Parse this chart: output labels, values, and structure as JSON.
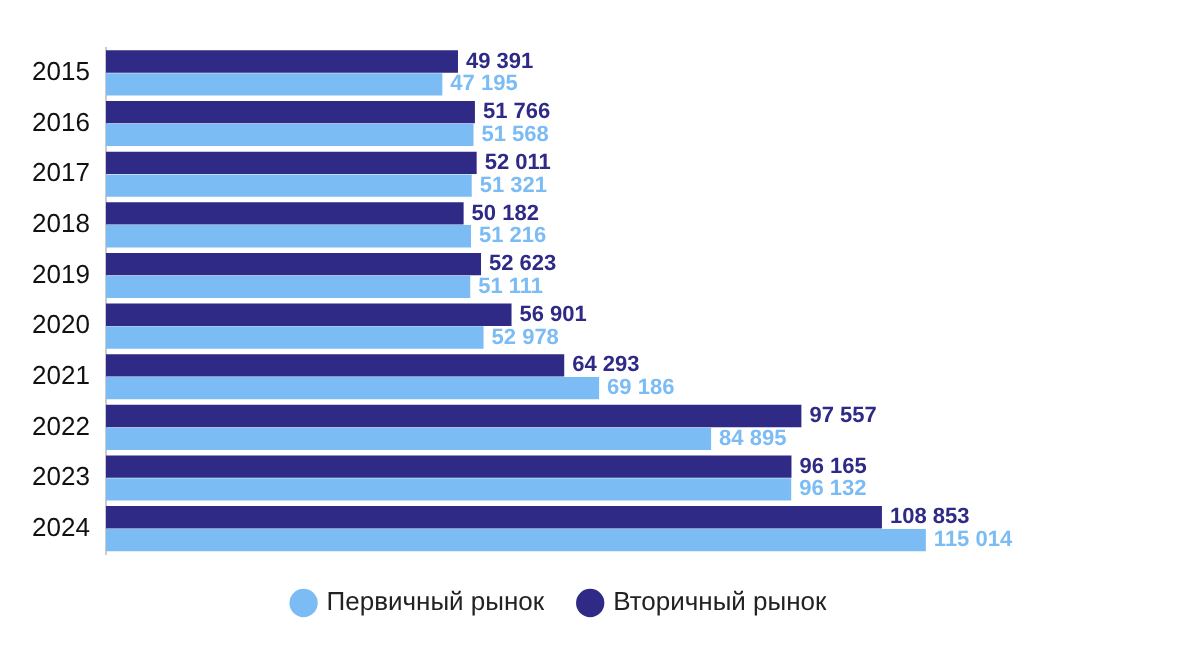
{
  "chart_data": {
    "type": "bar",
    "orientation": "horizontal",
    "categories": [
      "2015",
      "2016",
      "2017",
      "2018",
      "2019",
      "2020",
      "2021",
      "2022",
      "2023",
      "2024"
    ],
    "series": [
      {
        "name": "Вторичный рынок",
        "color": "#2e2a86",
        "values": [
          49391,
          51766,
          52011,
          50182,
          52623,
          56901,
          64293,
          97557,
          96165,
          108853
        ],
        "value_labels": [
          "49 391",
          "51 766",
          "52 011",
          "50 182",
          "52 623",
          "56 901",
          "64 293",
          "97 557",
          "96 165",
          "108 853"
        ]
      },
      {
        "name": "Первичный рынок",
        "color": "#7cbcf4",
        "values": [
          47195,
          51568,
          51321,
          51216,
          51111,
          52978,
          69186,
          84895,
          96132,
          115014
        ],
        "value_labels": [
          "47 195",
          "51 568",
          "51 321",
          "51 216",
          "51 111",
          "52 978",
          "69 186",
          "84 895",
          "96 132",
          "115 014"
        ]
      }
    ],
    "grid": false,
    "legend": "bottom",
    "marker": "circle"
  }
}
